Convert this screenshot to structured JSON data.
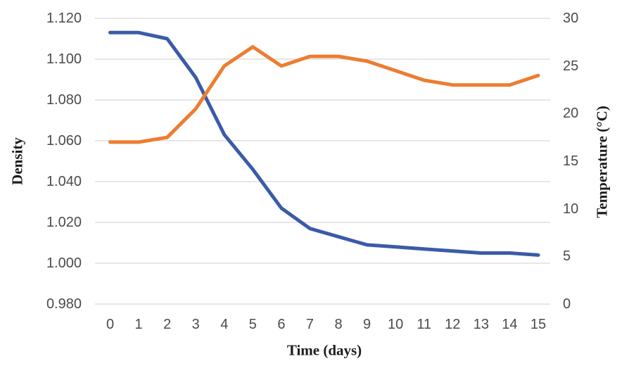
{
  "chart_data": {
    "type": "line",
    "title": "",
    "xlabel": "Time (days)",
    "x": [
      0,
      1,
      2,
      3,
      4,
      5,
      6,
      7,
      8,
      9,
      10,
      11,
      12,
      13,
      14,
      15
    ],
    "x_tick_labels": [
      "0",
      "1",
      "2",
      "3",
      "4",
      "5",
      "6",
      "7",
      "8",
      "9",
      "10",
      "11",
      "12",
      "13",
      "14",
      "15"
    ],
    "left_axis": {
      "label": "Density",
      "min": 0.98,
      "max": 1.12,
      "tick_step": 0.02,
      "ticks": [
        "1.120",
        "1.100",
        "1.080",
        "1.060",
        "1.040",
        "1.020",
        "1.000",
        "0.980"
      ]
    },
    "right_axis": {
      "label": "Temperature (°C)",
      "min": 0,
      "max": 30,
      "tick_step": 5,
      "ticks": [
        "30",
        "25",
        "20",
        "15",
        "10",
        "5",
        "0"
      ]
    },
    "grid": "horizontal-only",
    "legend": "none",
    "series": [
      {
        "name": "Density",
        "axis": "left",
        "color": "#3b5ba9",
        "values": [
          1.113,
          1.113,
          1.11,
          1.091,
          1.063,
          1.046,
          1.027,
          1.017,
          1.013,
          1.009,
          1.008,
          1.007,
          1.006,
          1.005,
          1.005,
          1.004
        ]
      },
      {
        "name": "Temperature",
        "axis": "right",
        "color": "#ed7d31",
        "values": [
          17,
          17,
          17.5,
          20.5,
          25,
          27,
          25,
          26,
          26,
          25.5,
          24.5,
          23.5,
          23,
          23,
          23,
          24
        ]
      }
    ]
  }
}
